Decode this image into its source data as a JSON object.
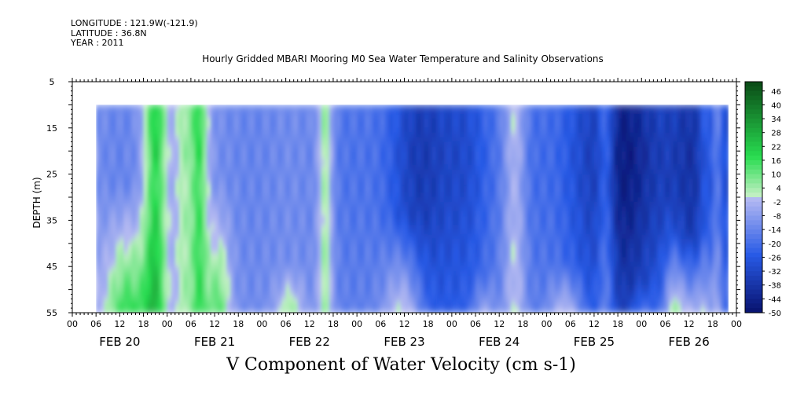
{
  "header": {
    "longitude": "LONGITUDE : 121.9W(-121.9)",
    "latitude": "LATITUDE : 36.8N",
    "year": "YEAR : 2011"
  },
  "chart_data": {
    "type": "heatmap",
    "title": "Hourly Gridded MBARI Mooring M0 Sea Water Temperature and Salinity Observations",
    "xlabel": "V Component of Water Velocity (cm s-1)",
    "ylabel": "DEPTH (m)",
    "y_ticks": [
      5,
      15,
      25,
      35,
      45,
      55
    ],
    "ylim": [
      5,
      55
    ],
    "y_inverted": true,
    "x_hour_ticks": [
      "00",
      "06",
      "12",
      "18",
      "00",
      "06",
      "12",
      "18",
      "00",
      "06",
      "12",
      "18",
      "00",
      "06",
      "12",
      "18",
      "00",
      "06",
      "12",
      "18",
      "00",
      "06",
      "12",
      "18",
      "00",
      "06",
      "12",
      "18",
      "00"
    ],
    "x_day_labels": [
      "FEB 20",
      "FEB 21",
      "FEB 22",
      "FEB 23",
      "FEB 24",
      "FEB 25",
      "FEB 26"
    ],
    "colorbar_labels": [
      "46",
      "40",
      "34",
      "28",
      "22",
      "16",
      "10",
      "4",
      "-2",
      "-8",
      "-14",
      "-20",
      "-26",
      "-32",
      "-38",
      "-44",
      "-50"
    ],
    "colorbar_range": [
      -50,
      50
    ],
    "colorbar_step": 2,
    "data_depth_range": [
      10,
      55
    ],
    "data_time_start_hours": 6,
    "data_time_end_hours": 166,
    "time_axis_hours": [
      0,
      168
    ],
    "colors": {
      "negative_strong": "#08126e",
      "near_zero_neg": "#b8bcf2",
      "near_zero_pos": "#c8f0c8",
      "positive_strong": "#0a4a16"
    }
  }
}
